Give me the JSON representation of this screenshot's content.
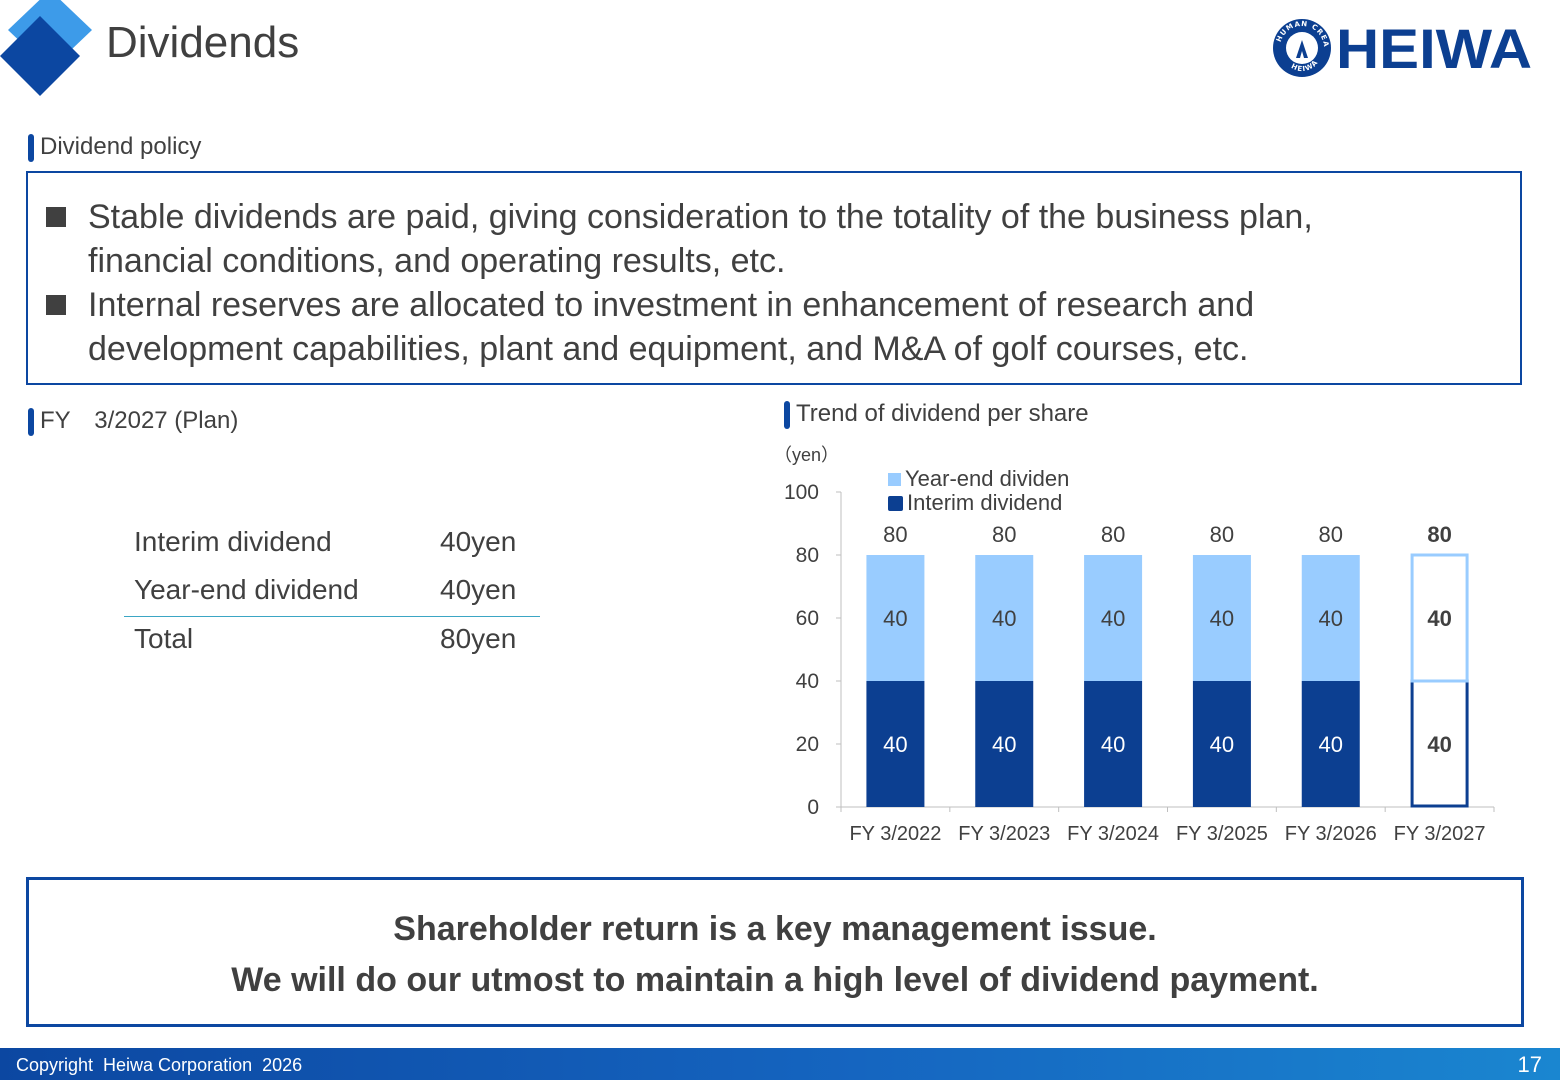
{
  "header": {
    "title": "Dividends",
    "brand_text": "HEIWA",
    "brand_ring_text": "HUMAN CREATIVE HEIWA"
  },
  "policy": {
    "label": "Dividend policy",
    "bullets": [
      {
        "line1": "Stable dividends are paid, giving consideration to the totality of the business plan,",
        "line2": "financial conditions, and operating results, etc."
      },
      {
        "line1": "Internal reserves are allocated to investment in enhancement of research and",
        "line2": "development capabilities, plant and equipment, and M&A of golf courses, etc."
      }
    ]
  },
  "plan": {
    "label": "FY　3/2027 (Plan)",
    "rows": [
      {
        "label": "Interim dividend",
        "value": "40yen"
      },
      {
        "label": "Year-end dividend",
        "value": "40yen"
      },
      {
        "label": "Total",
        "value": "80yen"
      }
    ]
  },
  "trend": {
    "label": "Trend of dividend per share"
  },
  "chart_data": {
    "type": "bar",
    "stacked": true,
    "unit_label": "（yen）",
    "categories": [
      "FY 3/2022",
      "FY 3/2023",
      "FY 3/2024",
      "FY 3/2025",
      "FY 3/2026",
      "FY 3/2027"
    ],
    "series": [
      {
        "name": "Interim dividend",
        "values": [
          40,
          40,
          40,
          40,
          40,
          40
        ],
        "color": "#0c3f91"
      },
      {
        "name": "Year-end dividen",
        "values": [
          40,
          40,
          40,
          40,
          40,
          40
        ],
        "color": "#99ccff"
      }
    ],
    "totals": [
      80,
      80,
      80,
      80,
      80,
      80
    ],
    "plan_index": 5,
    "ylim": [
      0,
      100
    ],
    "yticks": [
      0,
      20,
      40,
      60,
      80,
      100
    ],
    "legend": "top-left",
    "grid": false
  },
  "message": {
    "line1": "Shareholder return is a key management issue.",
    "line2": "We will do our utmost to maintain a high level of dividend payment."
  },
  "footer": {
    "copyright": "Copyright  Heiwa Corporation  2026",
    "page": "17"
  },
  "colors": {
    "navy": "#0c47a1",
    "interim": "#0c3f91",
    "yearend": "#99ccff",
    "text": "#404040"
  }
}
